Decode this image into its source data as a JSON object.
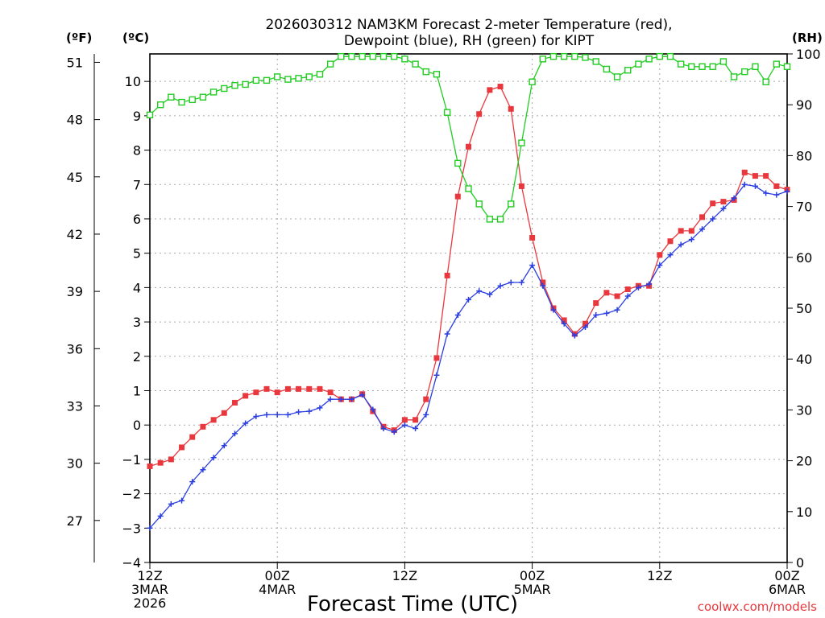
{
  "chart_data": {
    "type": "line",
    "title_lines": [
      "2026030312 NAM3KM Forecast 2-meter Temperature (red),",
      "Dewpoint (blue), RH (green) for KIPT"
    ],
    "xlabel": "Forecast Time (UTC)",
    "credit": "coolwx.com/models",
    "axis_units": {
      "fahrenheit": "(ºF)",
      "celsius": "(ºC)",
      "rh": "(RH)"
    },
    "x_hours_range": [
      0,
      60
    ],
    "x_ticks": [
      {
        "hour": 0,
        "lines": [
          "12Z",
          "3MAR",
          "2026"
        ]
      },
      {
        "hour": 12,
        "lines": [
          "00Z",
          "4MAR"
        ]
      },
      {
        "hour": 24,
        "lines": [
          "12Z"
        ]
      },
      {
        "hour": 36,
        "lines": [
          "00Z",
          "5MAR"
        ]
      },
      {
        "hour": 48,
        "lines": [
          "12Z"
        ]
      },
      {
        "hour": 60,
        "lines": [
          "00Z",
          "6MAR"
        ]
      }
    ],
    "celsius_range": [
      -4,
      10.8
    ],
    "celsius_ticks": [
      -4,
      -3,
      -2,
      -1,
      0,
      1,
      2,
      3,
      4,
      5,
      6,
      7,
      8,
      9,
      10
    ],
    "celsius_tick_labels": [
      "−4",
      "−3",
      "−2",
      "−1",
      "0",
      "1",
      "2",
      "3",
      "4",
      "5",
      "6",
      "7",
      "8",
      "9",
      "10"
    ],
    "fahrenheit_ticks": [
      27,
      30,
      33,
      36,
      39,
      42,
      45,
      48,
      51
    ],
    "fahrenheit_tick_labels": [
      "27",
      "30",
      "33",
      "36",
      "39",
      "42",
      "45",
      "48",
      "51"
    ],
    "rh_range": [
      0,
      100
    ],
    "rh_ticks": [
      0,
      10,
      20,
      30,
      40,
      50,
      60,
      70,
      80,
      90,
      100
    ],
    "rh_tick_labels": [
      "0",
      "10",
      "20",
      "30",
      "40",
      "50",
      "60",
      "70",
      "80",
      "90",
      "100"
    ],
    "grid": true,
    "hours": [
      0,
      1,
      2,
      3,
      4,
      5,
      6,
      7,
      8,
      9,
      10,
      11,
      12,
      13,
      14,
      15,
      16,
      17,
      18,
      19,
      20,
      21,
      22,
      23,
      24,
      25,
      26,
      27,
      28,
      29,
      30,
      31,
      32,
      33,
      34,
      35,
      36,
      37,
      38,
      39,
      40,
      41,
      42,
      43,
      44,
      45,
      46,
      47,
      48,
      49,
      50,
      51,
      52,
      53,
      54,
      55,
      56,
      57,
      58,
      59,
      60
    ],
    "series": [
      {
        "name": "2-meter Temperature",
        "unit": "°C",
        "axis": "celsius",
        "color": "#e8383d",
        "marker": "filled-square",
        "values": [
          -1.2,
          -1.1,
          -1.0,
          -0.65,
          -0.35,
          -0.05,
          0.15,
          0.35,
          0.65,
          0.85,
          0.95,
          1.05,
          0.95,
          1.05,
          1.05,
          1.05,
          1.05,
          0.95,
          0.75,
          0.75,
          0.9,
          0.4,
          -0.05,
          -0.15,
          0.15,
          0.15,
          0.75,
          1.95,
          4.35,
          6.65,
          8.1,
          9.05,
          9.75,
          9.85,
          9.2,
          6.95,
          5.45,
          4.15,
          3.4,
          3.05,
          2.65,
          2.95,
          3.55,
          3.85,
          3.75,
          3.95,
          4.05,
          4.05,
          4.95,
          5.35,
          5.65,
          5.65,
          6.05,
          6.45,
          6.5,
          6.55,
          7.35,
          7.25,
          7.25,
          6.95,
          6.85
        ]
      },
      {
        "name": "Dewpoint",
        "unit": "°C",
        "axis": "celsius",
        "color": "#2b3fe0",
        "marker": "plus",
        "values": [
          -3.0,
          -2.65,
          -2.3,
          -2.2,
          -1.65,
          -1.3,
          -0.95,
          -0.6,
          -0.25,
          0.05,
          0.25,
          0.3,
          0.3,
          0.3,
          0.38,
          0.4,
          0.5,
          0.75,
          0.75,
          0.75,
          0.88,
          0.45,
          -0.1,
          -0.2,
          0.0,
          -0.1,
          0.3,
          1.45,
          2.65,
          3.2,
          3.65,
          3.9,
          3.8,
          4.05,
          4.15,
          4.15,
          4.65,
          4.05,
          3.35,
          2.95,
          2.6,
          2.85,
          3.2,
          3.25,
          3.35,
          3.75,
          4.0,
          4.1,
          4.65,
          4.95,
          5.25,
          5.4,
          5.7,
          6.0,
          6.3,
          6.6,
          7.0,
          6.95,
          6.75,
          6.7,
          6.8
        ]
      },
      {
        "name": "Relative Humidity",
        "unit": "%",
        "axis": "rh",
        "color": "#22cc22",
        "marker": "open-square",
        "values": [
          88,
          90,
          91.5,
          90.5,
          91,
          91.5,
          92.5,
          93.2,
          93.8,
          94,
          94.8,
          94.8,
          95.5,
          95,
          95.2,
          95.5,
          96,
          98,
          99.5,
          99.5,
          99.5,
          99.5,
          99.5,
          99.5,
          99,
          98,
          96.5,
          96,
          88.5,
          78.5,
          73.5,
          70.5,
          67.5,
          67.5,
          70.5,
          82.5,
          94.5,
          99,
          99.5,
          99.5,
          99.5,
          99.3,
          98.5,
          97,
          95.5,
          96.8,
          98,
          99,
          99.5,
          99.5,
          98,
          97.5,
          97.5,
          97.5,
          98.5,
          95.5,
          96.5,
          97.5,
          94.5,
          98,
          97.5
        ]
      }
    ]
  }
}
